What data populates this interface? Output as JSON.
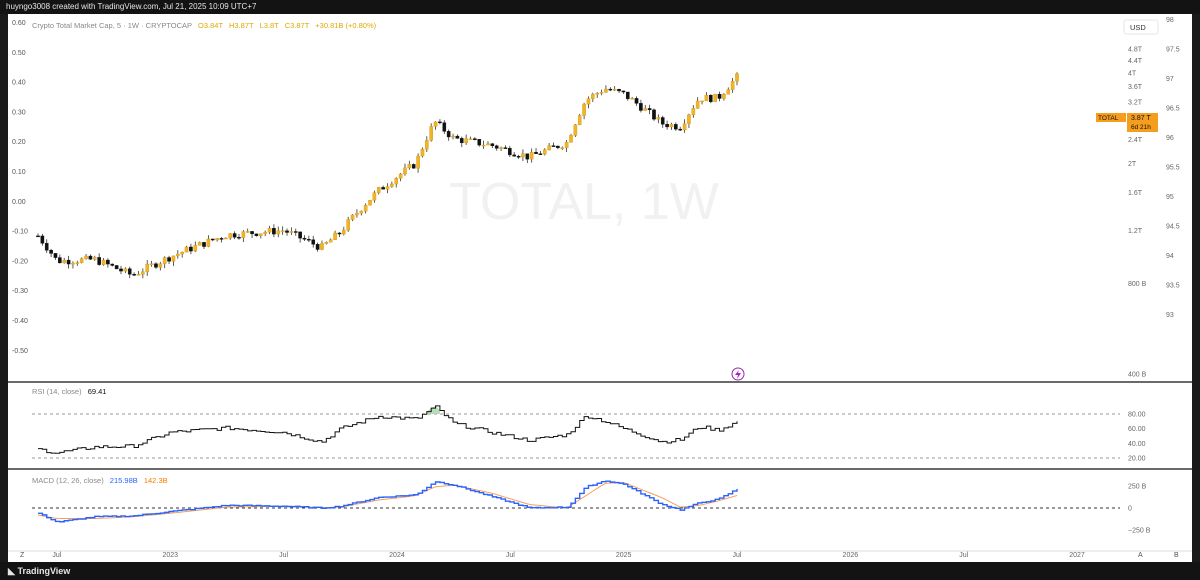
{
  "attribution": "huyngo3008 created with TradingView.com, Jul 21, 2025 10:09 UTC+7",
  "footer_brand": "TradingView",
  "watermark": "TOTAL, 1W",
  "legend": {
    "title": "Crypto Total Market Cap, 5 · 1W · CRYPTOCAP",
    "open": "O3.84T",
    "high": "H3.87T",
    "low": "L3.8T",
    "close": "C3.87T",
    "change": "+30.81B (+0.80%)"
  },
  "currency": "USD",
  "price_tag": {
    "symbol": "TOTAL",
    "value": "3.87 T",
    "countdown": "6d 21h"
  },
  "left_axis_labels": [
    "0.60",
    "0.50",
    "0.40",
    "0.30",
    "0.20",
    "0.10",
    "0.00",
    "-0.10",
    "-0.20",
    "-0.30",
    "-0.40",
    "-0.50"
  ],
  "right_axis_labels": [
    "4.8T",
    "4.4T",
    "4T",
    "3.6T",
    "3.2T",
    "2.8T",
    "2.4T",
    "2T",
    "1.6T",
    "1.2T",
    "800 B",
    "400 B"
  ],
  "far_right_labels": [
    "98",
    "97.5",
    "97",
    "96.5",
    "96",
    "95.5",
    "95",
    "94.5",
    "94",
    "93.5",
    "93"
  ],
  "rsi": {
    "label": "RSI (14, close)",
    "value": "69.41",
    "levels": [
      "80.00",
      "60.00",
      "40.00",
      "20.00"
    ]
  },
  "macd": {
    "label": "MACD (12, 26, close)",
    "macd_value": "215.98B",
    "signal_value": "142.3B",
    "levels": [
      "250 B",
      "0",
      "−250 B"
    ]
  },
  "time_labels": [
    "Jul",
    "2023",
    "Jul",
    "2024",
    "Jul",
    "2025",
    "Jul",
    "2026",
    "Jul",
    "2027"
  ],
  "corner_labels": {
    "left": "Z",
    "auto": "A",
    "settings": "B"
  },
  "colors": {
    "up": "#f0b429",
    "down": "#111111",
    "rsi_line": "#111111",
    "macd_line": "#2962ff",
    "signal_line": "#f5a15a",
    "highlight": "#f59d1c",
    "overbought_fill": "#a5d6a7"
  },
  "chart_data": {
    "type": "candlestick",
    "interval": "1W",
    "x_range": [
      "2022-06",
      "2025-07"
    ],
    "ylim_trillions": [
      0.4,
      5.0
    ],
    "y_scale": "log",
    "anchors": [
      {
        "date": "2022-06",
        "close_t": 1.15
      },
      {
        "date": "2022-07",
        "close_t": 0.95
      },
      {
        "date": "2022-09",
        "close_t": 0.96
      },
      {
        "date": "2022-11",
        "close_t": 0.85
      },
      {
        "date": "2023-01",
        "close_t": 0.98
      },
      {
        "date": "2023-04",
        "close_t": 1.16
      },
      {
        "date": "2023-07",
        "close_t": 1.2
      },
      {
        "date": "2023-09",
        "close_t": 1.05
      },
      {
        "date": "2023-10",
        "close_t": 1.18
      },
      {
        "date": "2023-12",
        "close_t": 1.62
      },
      {
        "date": "2024-02",
        "close_t": 2.0
      },
      {
        "date": "2024-03",
        "close_t": 2.75
      },
      {
        "date": "2024-04",
        "close_t": 2.42
      },
      {
        "date": "2024-06",
        "close_t": 2.3
      },
      {
        "date": "2024-08",
        "close_t": 2.1
      },
      {
        "date": "2024-10",
        "close_t": 2.35
      },
      {
        "date": "2024-11",
        "close_t": 3.25
      },
      {
        "date": "2024-12",
        "close_t": 3.55
      },
      {
        "date": "2025-01",
        "close_t": 3.4
      },
      {
        "date": "2025-03",
        "close_t": 2.72
      },
      {
        "date": "2025-04",
        "close_t": 2.65
      },
      {
        "date": "2025-05",
        "close_t": 3.3
      },
      {
        "date": "2025-06",
        "close_t": 3.3
      },
      {
        "date": "2025-07",
        "close_t": 3.87
      }
    ],
    "rsi_anchors": [
      {
        "date": "2022-06",
        "v": 32
      },
      {
        "date": "2022-07",
        "v": 27
      },
      {
        "date": "2022-09",
        "v": 35
      },
      {
        "date": "2022-11",
        "v": 36
      },
      {
        "date": "2023-01",
        "v": 55
      },
      {
        "date": "2023-04",
        "v": 61
      },
      {
        "date": "2023-07",
        "v": 55
      },
      {
        "date": "2023-09",
        "v": 42
      },
      {
        "date": "2023-10",
        "v": 60
      },
      {
        "date": "2023-12",
        "v": 77
      },
      {
        "date": "2024-02",
        "v": 73
      },
      {
        "date": "2024-03",
        "v": 90
      },
      {
        "date": "2024-04",
        "v": 67
      },
      {
        "date": "2024-06",
        "v": 55
      },
      {
        "date": "2024-08",
        "v": 44
      },
      {
        "date": "2024-10",
        "v": 52
      },
      {
        "date": "2024-11",
        "v": 78
      },
      {
        "date": "2024-12",
        "v": 70
      },
      {
        "date": "2025-01",
        "v": 60
      },
      {
        "date": "2025-03",
        "v": 42
      },
      {
        "date": "2025-04",
        "v": 45
      },
      {
        "date": "2025-05",
        "v": 63
      },
      {
        "date": "2025-06",
        "v": 58
      },
      {
        "date": "2025-07",
        "v": 69.41
      }
    ],
    "macd_anchors_b": [
      {
        "date": "2022-06",
        "m": -60,
        "s": -80
      },
      {
        "date": "2022-07",
        "m": -160,
        "s": -120
      },
      {
        "date": "2022-09",
        "m": -100,
        "s": -120
      },
      {
        "date": "2022-11",
        "m": -90,
        "s": -100
      },
      {
        "date": "2023-01",
        "m": -40,
        "s": -60
      },
      {
        "date": "2023-04",
        "m": 30,
        "s": 10
      },
      {
        "date": "2023-07",
        "m": 20,
        "s": 20
      },
      {
        "date": "2023-09",
        "m": 0,
        "s": 5
      },
      {
        "date": "2023-10",
        "m": 20,
        "s": 10
      },
      {
        "date": "2023-12",
        "m": 120,
        "s": 90
      },
      {
        "date": "2024-02",
        "m": 150,
        "s": 140
      },
      {
        "date": "2024-03",
        "m": 300,
        "s": 240
      },
      {
        "date": "2024-04",
        "m": 260,
        "s": 260
      },
      {
        "date": "2024-06",
        "m": 130,
        "s": 170
      },
      {
        "date": "2024-08",
        "m": 0,
        "s": 40
      },
      {
        "date": "2024-10",
        "m": 10,
        "s": 0
      },
      {
        "date": "2024-11",
        "m": 240,
        "s": 140
      },
      {
        "date": "2024-12",
        "m": 310,
        "s": 280
      },
      {
        "date": "2025-01",
        "m": 270,
        "s": 290
      },
      {
        "date": "2025-03",
        "m": 40,
        "s": 120
      },
      {
        "date": "2025-04",
        "m": -20,
        "s": 10
      },
      {
        "date": "2025-05",
        "m": 60,
        "s": 30
      },
      {
        "date": "2025-06",
        "m": 100,
        "s": 80
      },
      {
        "date": "2025-07",
        "m": 215.98,
        "s": 142.3
      }
    ]
  }
}
